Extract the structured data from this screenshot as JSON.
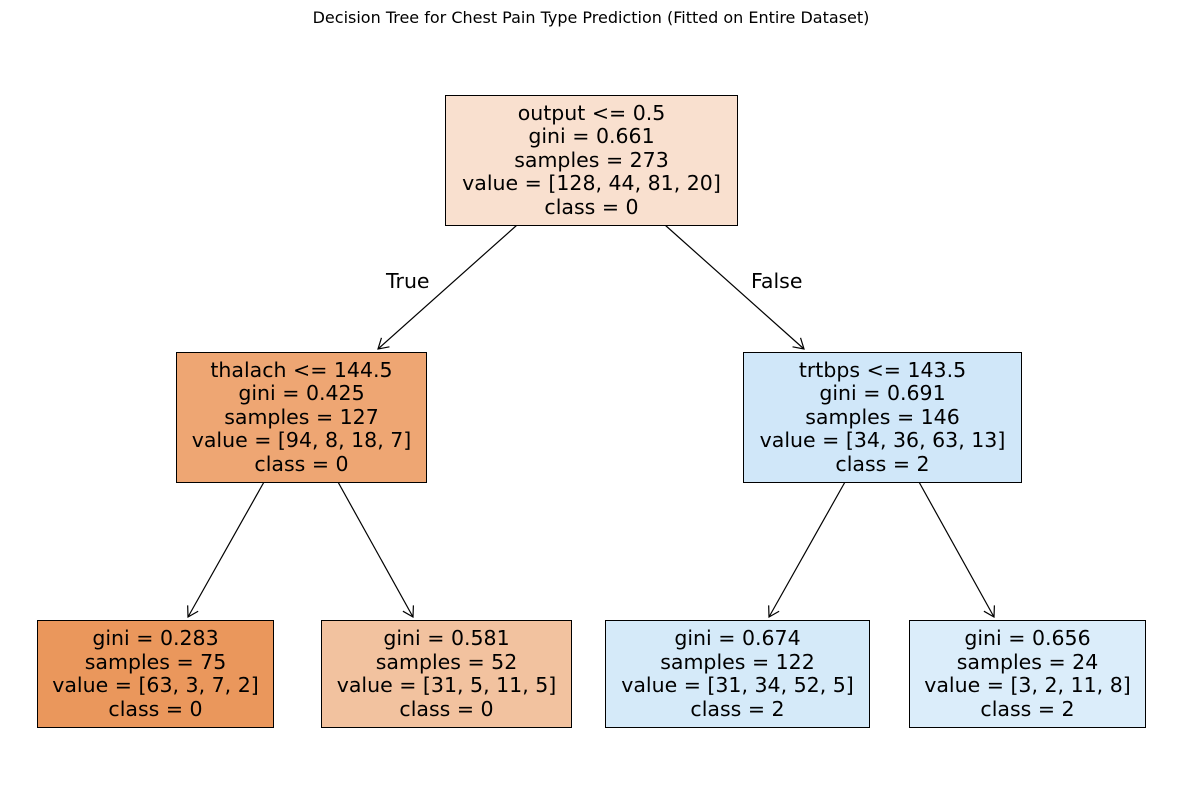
{
  "title": "Decision Tree for Chest Pain Type Prediction (Fitted on Entire Dataset)",
  "edge_labels": {
    "true": "True",
    "false": "False"
  },
  "colors": {
    "class_0": "#e58139",
    "class_2": "#399de5"
  },
  "nodes": {
    "root": {
      "split": "output <= 0.5",
      "gini": "gini = 0.661",
      "samples": "samples = 273",
      "value": "value = [128, 44, 81, 20]",
      "class": "class = 0",
      "fill": "#f9e0cf"
    },
    "left": {
      "split": "thalach <= 144.5",
      "gini": "gini = 0.425",
      "samples": "samples = 127",
      "value": "value = [94, 8, 18, 7]",
      "class": "class = 0",
      "fill": "#eea673"
    },
    "right": {
      "split": "trtbps <= 143.5",
      "gini": "gini = 0.691",
      "samples": "samples = 146",
      "value": "value = [34, 36, 63, 13]",
      "class": "class = 2",
      "fill": "#d0e7f9"
    },
    "leaf_ll": {
      "gini": "gini = 0.283",
      "samples": "samples = 75",
      "value": "value = [63, 3, 7, 2]",
      "class": "class = 0",
      "fill": "#ea975c"
    },
    "leaf_lr": {
      "gini": "gini = 0.581",
      "samples": "samples = 52",
      "value": "value = [31, 5, 11, 5]",
      "class": "class = 0",
      "fill": "#f2c29f"
    },
    "leaf_rl": {
      "gini": "gini = 0.674",
      "samples": "samples = 122",
      "value": "value = [31, 34, 52, 5]",
      "class": "class = 2",
      "fill": "#d5eaf9"
    },
    "leaf_rr": {
      "gini": "gini = 0.656",
      "samples": "samples = 24",
      "value": "value = [3, 2, 11, 8]",
      "class": "class = 2",
      "fill": "#dbedfa"
    }
  }
}
